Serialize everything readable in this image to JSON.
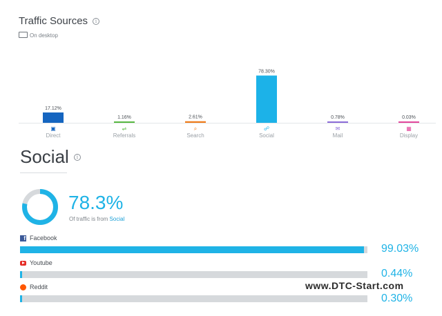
{
  "traffic_sources": {
    "title": "Traffic Sources",
    "device_label": "On desktop"
  },
  "chart_data": {
    "type": "bar",
    "categories": [
      "Direct",
      "Referrals",
      "Search",
      "Social",
      "Mail",
      "Display"
    ],
    "values": [
      17.12,
      1.16,
      2.61,
      78.3,
      0.78,
      0.03
    ],
    "value_labels": [
      "17.12%",
      "1.16%",
      "2.61%",
      "78.30%",
      "0.78%",
      "0.03%"
    ],
    "ylim": [
      0,
      80
    ],
    "colors": [
      "#1565c0",
      "#57b840",
      "#ef7d1e",
      "#1cb2e8",
      "#8b6bd8",
      "#e3479c"
    ],
    "icons": [
      "direct-icon",
      "referrals-icon",
      "search-icon",
      "social-icon",
      "mail-icon",
      "display-icon"
    ]
  },
  "social": {
    "title": "Social",
    "percent_text": "78.3%",
    "percent_value": 78.3,
    "caption_prefix": "Of traffic is from",
    "caption_link": "Social",
    "sources": [
      {
        "name": "Facebook",
        "percent_text": "99.03%",
        "value": 99.03,
        "icon": "facebook-icon"
      },
      {
        "name": "Youtube",
        "percent_text": "0.44%",
        "value": 0.44,
        "icon": "youtube-icon"
      },
      {
        "name": "Reddit",
        "percent_text": "0.30%",
        "value": 0.3,
        "icon": "reddit-icon"
      }
    ],
    "accent_color": "#1fb3e6",
    "track_color": "#d6d9dc"
  },
  "watermark": "www.DTC-Start.com"
}
